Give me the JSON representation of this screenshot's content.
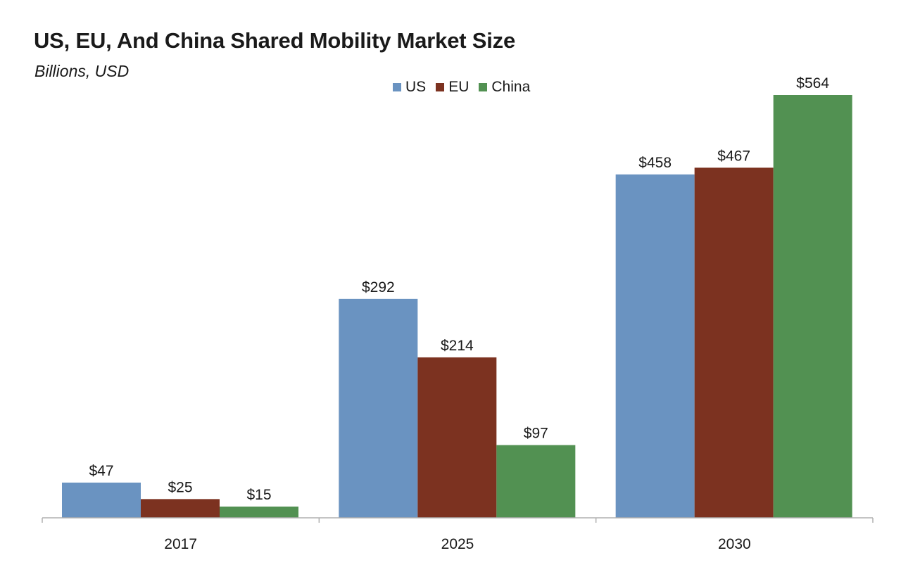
{
  "chart_data": {
    "type": "bar",
    "title": "US, EU, And China Shared Mobility Market Size",
    "subtitle": "Billions, USD",
    "xlabel": "",
    "ylabel": "",
    "categories": [
      "2017",
      "2025",
      "2030"
    ],
    "series": [
      {
        "name": "US",
        "color": "#6a93c1",
        "values": [
          47,
          292,
          458
        ],
        "labels": [
          "$47",
          "$292",
          "$458"
        ]
      },
      {
        "name": "EU",
        "color": "#7c3220",
        "values": [
          25,
          214,
          467
        ],
        "labels": [
          "$25",
          "$214",
          "$467"
        ]
      },
      {
        "name": "China",
        "color": "#529152",
        "values": [
          15,
          97,
          564
        ],
        "labels": [
          "$15",
          "$97",
          "$564"
        ]
      }
    ],
    "ylim": [
      0,
      564
    ],
    "grid": false,
    "legend": "top-center"
  }
}
